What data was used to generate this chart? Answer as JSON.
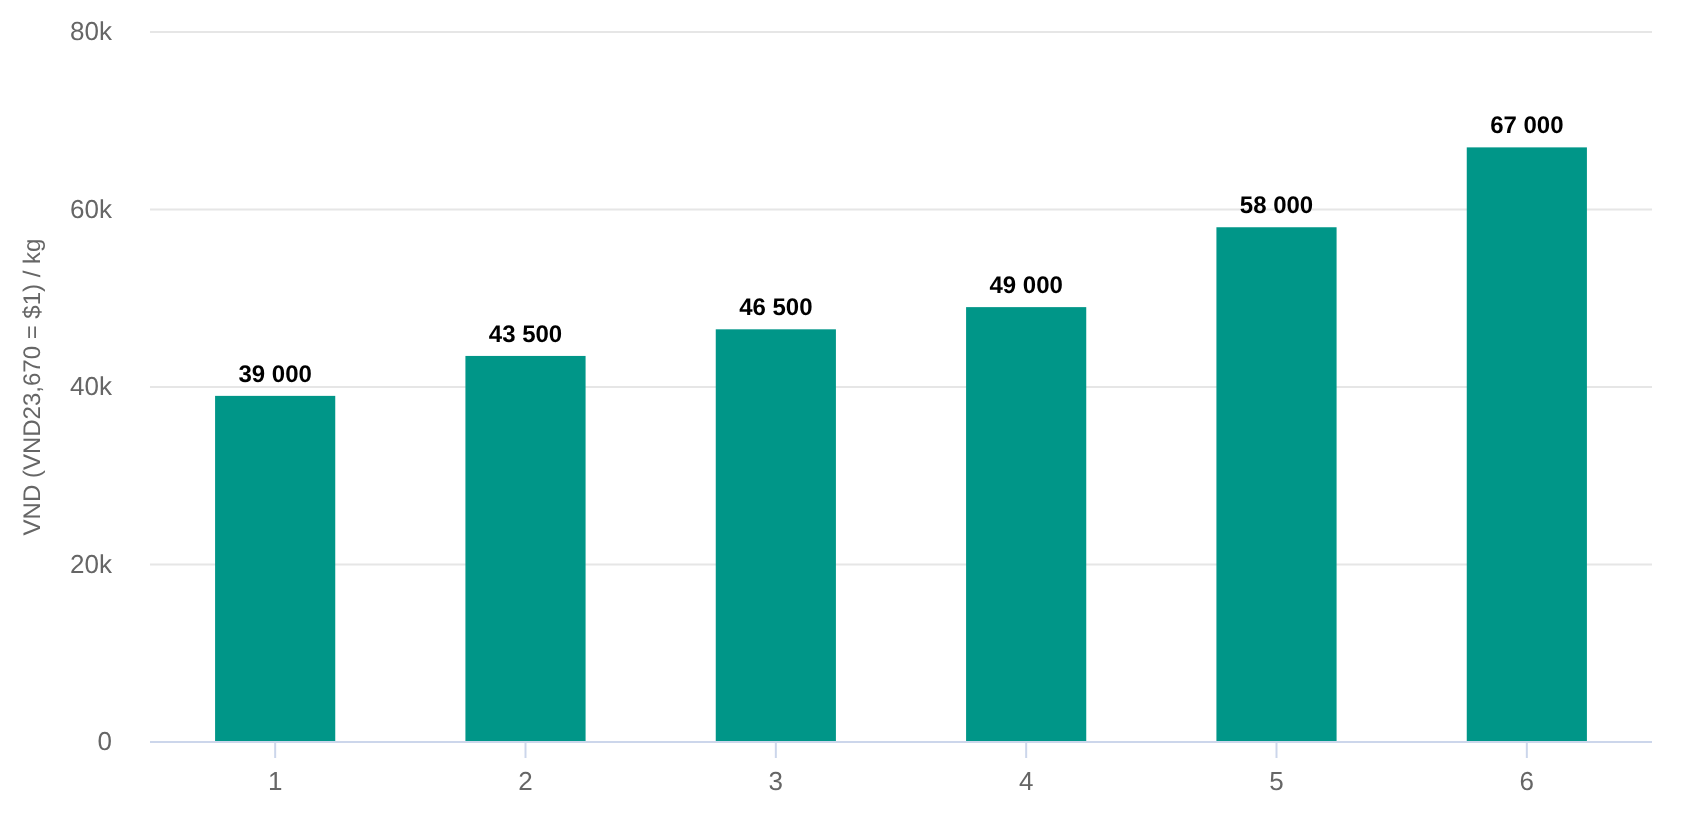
{
  "chart_data": {
    "type": "bar",
    "ylabel": "VND (VND23,670 = $1) / kg",
    "categories": [
      "1",
      "2",
      "3",
      "4",
      "5",
      "6"
    ],
    "values": [
      39000,
      43500,
      46500,
      49000,
      58000,
      67000
    ],
    "value_labels": [
      "39 000",
      "43 500",
      "46 500",
      "49 000",
      "58 000",
      "67 000"
    ],
    "color": "#009688",
    "ylim": [
      0,
      80000
    ],
    "yticks": [
      {
        "value": 0,
        "label": "0"
      },
      {
        "value": 20000,
        "label": "20k"
      },
      {
        "value": 40000,
        "label": "40k"
      },
      {
        "value": 60000,
        "label": "60k"
      },
      {
        "value": 80000,
        "label": "80k"
      }
    ],
    "grid": "y"
  }
}
